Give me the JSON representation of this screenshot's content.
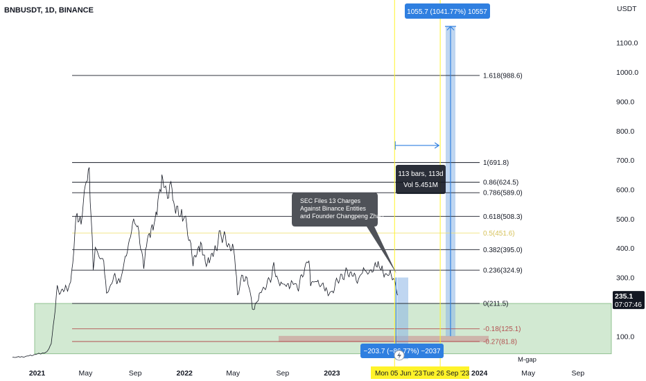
{
  "header": {
    "symbol_title": "BNBUSDT, 1D, BINANCE"
  },
  "chart_data": {
    "type": "line",
    "currency": "USDT",
    "y_ticks": [
      "1100.0",
      "1000.0",
      "900.0",
      "800.0",
      "700.0",
      "600.0",
      "500.0",
      "400.0",
      "300.0",
      "100.0"
    ],
    "x_ticks": [
      "2021",
      "May",
      "Sep",
      "2022",
      "May",
      "Sep",
      "2023",
      "2024",
      "May",
      "Sep"
    ],
    "last_price": "235.1",
    "countdown": "07:07:46",
    "fib_levels": [
      {
        "label": "1.618(988.6)",
        "value": 988.6
      },
      {
        "label": "1(691.8)",
        "value": 691.8
      },
      {
        "label": "0.86(624.5)",
        "value": 624.5
      },
      {
        "label": "0.786(589.0)",
        "value": 589.0
      },
      {
        "label": "0.618(508.3)",
        "value": 508.3
      },
      {
        "label": "0.5(451.6)",
        "value": 451.6
      },
      {
        "label": "0.382(395.0)",
        "value": 395.0
      },
      {
        "label": "0.236(324.9)",
        "value": 324.9
      },
      {
        "label": "0(211.5)",
        "value": 211.5
      },
      {
        "label": "-0.18(125.1)",
        "value": 125.1
      },
      {
        "label": "-0.27(81.8)",
        "value": 81.8
      }
    ],
    "annotation": [
      "SEC Files 13 Charges",
      "Against Binance Entities",
      "and Founder Changpeng Zhao"
    ],
    "range_box": [
      "113 bars, 113d",
      "Vol 5.451M"
    ],
    "target_label": "1055.7 (1041.77%) 10557",
    "drop_label": "−203.7 (−86.77%) −2037",
    "date_labels": [
      "Mon 05 Jun '23",
      "Tue 26 Sep '23"
    ],
    "gap_label": "M-gap",
    "colors": {
      "price_line": "#131722",
      "fib_line": "#131722",
      "fib_half": "#f0e27a",
      "fib_negative": "#b25050",
      "measure_blue": "#2f7fe0",
      "zone_green": "#9ccf9c",
      "date_highlight": "#fff32a"
    }
  }
}
